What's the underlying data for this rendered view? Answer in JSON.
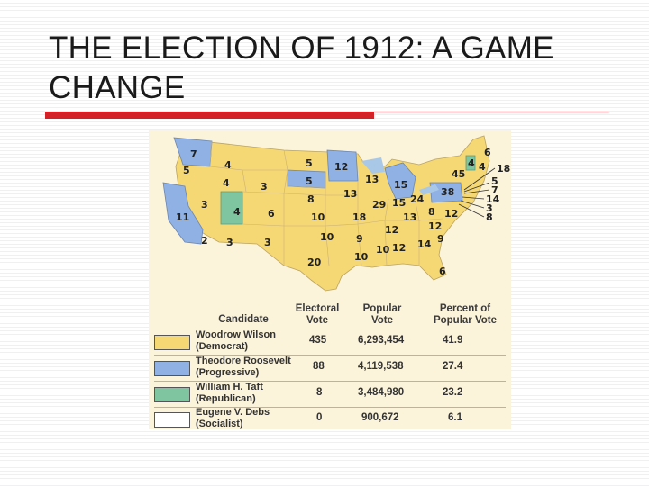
{
  "title": "THE ELECTION OF 1912: A GAME CHANGE",
  "colors": {
    "democrat": "#f5d774",
    "progressive": "#8fb1e3",
    "republican": "#7ec5a0",
    "socialist": "#ffffff",
    "rule": "#d42027",
    "figure_bg": "#fbf3da"
  },
  "map": {
    "electoral_labels": [
      "7",
      "5",
      "4",
      "3",
      "4",
      "3",
      "11",
      "2",
      "3",
      "3",
      "4",
      "6",
      "5",
      "5",
      "12",
      "8",
      "10",
      "10",
      "20",
      "13",
      "18",
      "9",
      "10",
      "10",
      "12",
      "13",
      "15",
      "29",
      "15",
      "24",
      "13",
      "12",
      "12",
      "14",
      "9",
      "8",
      "12",
      "38",
      "45",
      "4",
      "4",
      "6",
      "18",
      "5",
      "7",
      "14",
      "3",
      "8",
      "6"
    ]
  },
  "legend": {
    "headers": {
      "candidate": "Candidate",
      "electoral_vote": "Electoral Vote",
      "popular_vote": "Popular Vote",
      "percent": "Percent of Popular Vote"
    },
    "rows": [
      {
        "name": "Woodrow Wilson",
        "party": "(Democrat)",
        "electoral": "435",
        "popular": "6,293,454",
        "percent": "41.9",
        "color_key": "democrat"
      },
      {
        "name": "Theodore Roosevelt",
        "party": "(Progressive)",
        "electoral": "88",
        "popular": "4,119,538",
        "percent": "27.4",
        "color_key": "progressive"
      },
      {
        "name": "William H. Taft",
        "party": "(Republican)",
        "electoral": "8",
        "popular": "3,484,980",
        "percent": "23.2",
        "color_key": "republican"
      },
      {
        "name": "Eugene V. Debs",
        "party": "(Socialist)",
        "electoral": "0",
        "popular": "900,672",
        "percent": "6.1",
        "color_key": "socialist"
      }
    ]
  }
}
